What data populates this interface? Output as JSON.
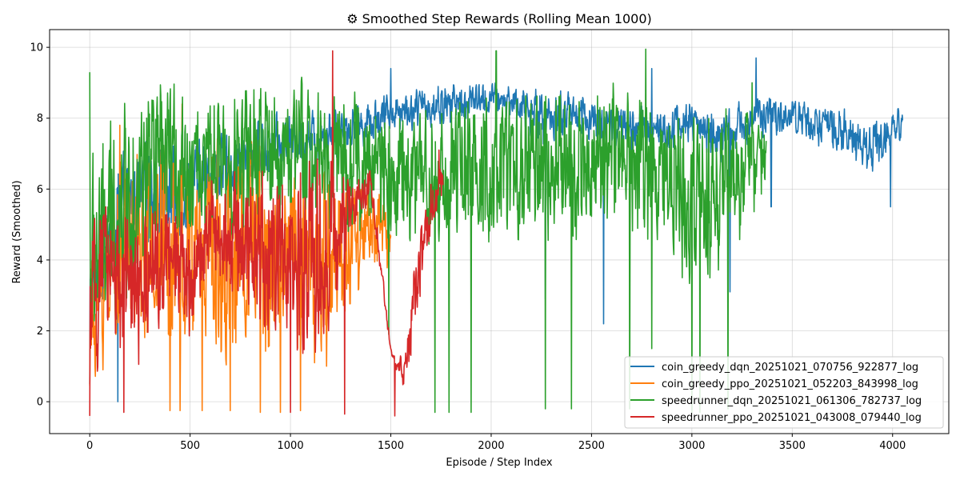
{
  "chart_data": {
    "type": "line",
    "title": "⚙ Smoothed Step Rewards (Rolling Mean 1000)",
    "xlabel": "Episode / Step Index",
    "ylabel": "Reward (Smoothed)",
    "xlim": [
      -200,
      4280
    ],
    "ylim": [
      -0.9,
      10.5
    ],
    "xticks": [
      0,
      500,
      1000,
      1500,
      2000,
      2500,
      3000,
      3500,
      4000
    ],
    "yticks": [
      0,
      2,
      4,
      6,
      8,
      10
    ],
    "grid": true,
    "legend_position": "lower-right",
    "series": [
      {
        "name": "coin_greedy_dqn_20251021_070756_922877_log",
        "color": "#1f77b4",
        "x_range": [
          0,
          4050
        ],
        "x": [
          0,
          150,
          300,
          450,
          600,
          750,
          900,
          1050,
          1200,
          1350,
          1500,
          1650,
          1800,
          1950,
          2100,
          2250,
          2400,
          2550,
          2700,
          2850,
          3000,
          3150,
          3300,
          3450,
          3600,
          3750,
          3900,
          4050
        ],
        "values": [
          3.0,
          5.5,
          6.0,
          5.8,
          6.5,
          6.8,
          7.2,
          7.4,
          7.6,
          7.8,
          8.2,
          8.3,
          8.4,
          8.5,
          8.5,
          8.0,
          8.2,
          7.8,
          7.6,
          7.7,
          7.9,
          7.4,
          8.0,
          8.1,
          7.9,
          7.6,
          7.2,
          7.9
        ],
        "band": [
          1.2,
          1.6,
          1.6,
          1.5,
          1.3,
          1.1,
          1.0,
          0.9,
          0.9,
          0.8,
          0.7,
          0.7,
          0.7,
          0.6,
          0.6,
          0.9,
          0.8,
          0.9,
          0.9,
          0.8,
          0.7,
          0.9,
          0.8,
          0.6,
          0.7,
          0.8,
          0.9,
          0.5
        ],
        "drops": [
          [
            0,
            0.5
          ],
          [
            140,
            0.0
          ],
          [
            2270,
            2.9
          ],
          [
            2560,
            2.2
          ],
          [
            3190,
            3.1
          ],
          [
            3395,
            5.5
          ],
          [
            3990,
            5.5
          ]
        ],
        "peaks": [
          [
            3320,
            9.7
          ],
          [
            1500,
            9.4
          ],
          [
            2800,
            9.4
          ]
        ]
      },
      {
        "name": "coin_greedy_ppo_20251021_052203_843998_log",
        "color": "#ff7f0e",
        "x_range": [
          0,
          1500
        ],
        "x": [
          0,
          100,
          200,
          300,
          400,
          500,
          600,
          700,
          800,
          900,
          1000,
          1100,
          1200,
          1300,
          1400,
          1500
        ],
        "values": [
          2.0,
          4.0,
          4.5,
          4.0,
          5.0,
          4.0,
          4.5,
          4.0,
          4.5,
          4.0,
          4.0,
          3.5,
          4.0,
          4.5,
          5.0,
          4.5
        ],
        "band": [
          2.5,
          2.8,
          3.2,
          3.5,
          3.5,
          3.6,
          3.5,
          3.6,
          3.6,
          3.6,
          3.5,
          3.5,
          3.4,
          2.5,
          1.5,
          1.0
        ],
        "drops": [
          [
            400,
            -0.25
          ],
          [
            450,
            -0.25
          ],
          [
            560,
            -0.25
          ],
          [
            700,
            -0.25
          ],
          [
            850,
            -0.3
          ],
          [
            950,
            -0.3
          ],
          [
            1050,
            -0.25
          ]
        ],
        "peaks": [
          [
            150,
            7.8
          ],
          [
            460,
            8.4
          ],
          [
            690,
            6.9
          ]
        ]
      },
      {
        "name": "speedrunner_dqn_20251021_061306_782737_log",
        "color": "#2ca02c",
        "x_range": [
          0,
          3370
        ],
        "x": [
          0,
          150,
          300,
          450,
          600,
          750,
          900,
          1050,
          1200,
          1350,
          1500,
          1650,
          1800,
          1950,
          2100,
          2250,
          2400,
          2550,
          2700,
          2850,
          3000,
          3150,
          3300,
          3370
        ],
        "values": [
          4.0,
          5.5,
          6.5,
          6.8,
          6.5,
          6.8,
          7.0,
          7.0,
          7.0,
          6.5,
          6.5,
          6.2,
          6.5,
          6.5,
          6.5,
          6.8,
          6.6,
          6.8,
          7.0,
          6.6,
          5.5,
          6.0,
          6.5,
          6.8
        ],
        "band": [
          3.5,
          3.5,
          3.0,
          2.5,
          2.3,
          2.5,
          2.5,
          2.5,
          2.5,
          2.5,
          2.5,
          2.5,
          2.5,
          2.5,
          2.3,
          2.5,
          2.5,
          2.5,
          2.8,
          2.5,
          3.0,
          2.8,
          2.0,
          1.5
        ],
        "drops": [
          [
            0,
            0.0
          ],
          [
            1490,
            1.9
          ],
          [
            1720,
            -0.3
          ],
          [
            1790,
            -0.3
          ],
          [
            1900,
            -0.3
          ],
          [
            2270,
            -0.2
          ],
          [
            2400,
            -0.2
          ],
          [
            2690,
            -0.2
          ],
          [
            2800,
            1.5
          ],
          [
            3000,
            -0.3
          ],
          [
            3040,
            -0.3
          ],
          [
            3180,
            -0.2
          ]
        ],
        "peaks": [
          [
            0,
            9.3
          ],
          [
            2025,
            9.9
          ],
          [
            2770,
            9.95
          ],
          [
            3300,
            9.0
          ]
        ]
      },
      {
        "name": "speedrunner_ppo_20251021_043008_079440_log",
        "color": "#d62728",
        "x_range": [
          0,
          1760
        ],
        "x": [
          0,
          100,
          200,
          300,
          400,
          500,
          600,
          700,
          800,
          900,
          1000,
          1100,
          1200,
          1300,
          1400,
          1500,
          1560,
          1620,
          1700,
          1760
        ],
        "values": [
          2.5,
          4.0,
          3.0,
          3.5,
          4.0,
          3.5,
          5.0,
          4.8,
          4.5,
          4.0,
          3.5,
          4.0,
          4.2,
          5.5,
          6.0,
          1.4,
          0.8,
          3.0,
          5.5,
          6.2
        ],
        "band": [
          2.8,
          2.0,
          2.8,
          2.5,
          2.0,
          2.0,
          1.5,
          2.0,
          2.5,
          3.0,
          3.3,
          3.5,
          3.5,
          1.0,
          0.6,
          0.1,
          0.5,
          1.5,
          0.8,
          0.6
        ],
        "drops": [
          [
            0,
            -0.4
          ],
          [
            170,
            -0.3
          ],
          [
            1000,
            -0.3
          ],
          [
            1270,
            -0.35
          ],
          [
            1520,
            -0.4
          ]
        ],
        "peaks": [
          [
            1210,
            9.9
          ],
          [
            1740,
            7.1
          ]
        ]
      }
    ]
  }
}
